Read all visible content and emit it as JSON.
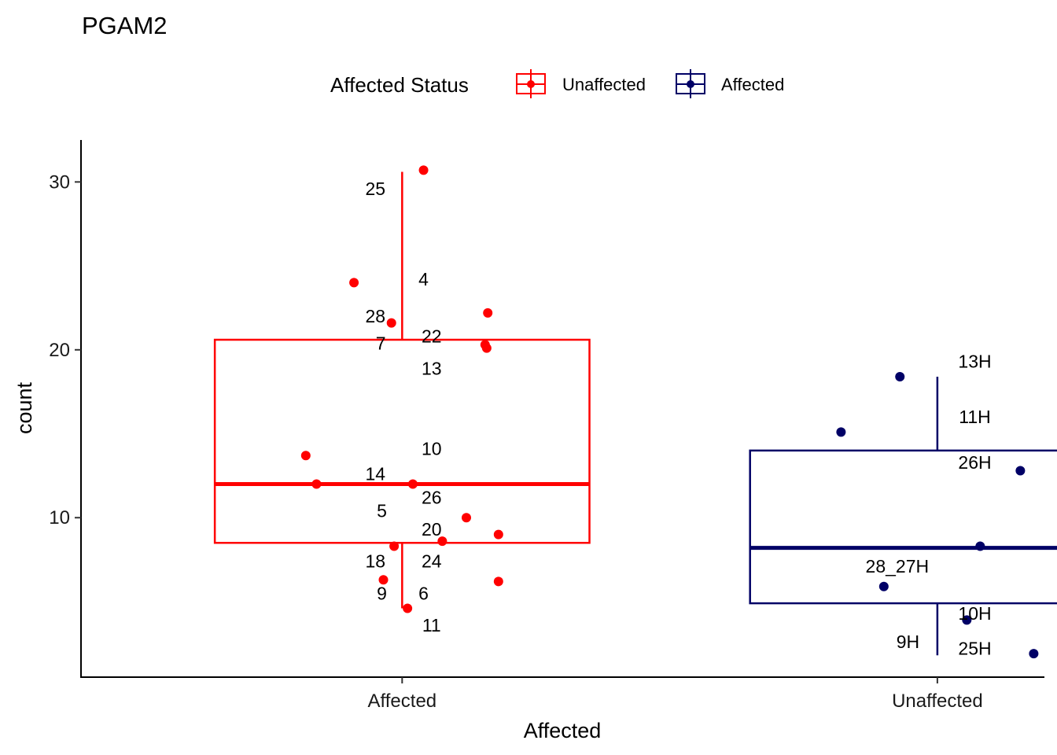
{
  "chart_data": {
    "type": "boxplot",
    "title": "PGAM2",
    "xlabel": "Affected",
    "ylabel": "count",
    "ylim": [
      0.5,
      32.5
    ],
    "y_ticks": [
      10,
      20,
      30
    ],
    "categories": [
      "Affected",
      "Unaffected"
    ],
    "legend": {
      "title": "Affected Status",
      "position": "top",
      "entries": [
        {
          "label": "Unaffected",
          "color": "#ff0000"
        },
        {
          "label": "Affected",
          "color": "#000066"
        }
      ]
    },
    "boxes": [
      {
        "category": "Affected",
        "color": "#ff0000",
        "whisker_low": 4.6,
        "q1": 8.5,
        "median": 12.0,
        "q3": 20.6,
        "whisker_high": 30.6,
        "points": [
          {
            "label": "25",
            "x_offset": 0.04,
            "y": 30.7
          },
          {
            "label": "4",
            "x_offset": -0.09,
            "y": 24.0
          },
          {
            "label": "28",
            "x_offset": 0.16,
            "y": 22.2
          },
          {
            "label": "7",
            "x_offset": -0.02,
            "y": 21.6
          },
          {
            "label": "22",
            "x_offset": 0.155,
            "y": 20.3
          },
          {
            "label": "13",
            "x_offset": 0.158,
            "y": 20.1
          },
          {
            "label": "10",
            "x_offset": -0.18,
            "y": 13.7
          },
          {
            "label": "14",
            "x_offset": -0.16,
            "y": 12.0
          },
          {
            "label": "26",
            "x_offset": 0.02,
            "y": 12.0
          },
          {
            "label": "5",
            "x_offset": 0.12,
            "y": 10.0
          },
          {
            "label": "20",
            "x_offset": 0.18,
            "y": 9.0
          },
          {
            "label": "18",
            "x_offset": -0.015,
            "y": 8.3
          },
          {
            "label": "24",
            "x_offset": 0.075,
            "y": 8.6
          },
          {
            "label": "9",
            "x_offset": -0.035,
            "y": 6.3
          },
          {
            "label": "6",
            "x_offset": 0.18,
            "y": 6.2
          },
          {
            "label": "11",
            "x_offset": 0.01,
            "y": 4.6
          }
        ],
        "labels_text": [
          {
            "text": "25",
            "x_offset": -0.05,
            "y": 29.6
          },
          {
            "text": "4",
            "x_offset": 0.04,
            "y": 24.2
          },
          {
            "text": "28",
            "x_offset": -0.05,
            "y": 22.0
          },
          {
            "text": "7",
            "x_offset": -0.04,
            "y": 20.4
          },
          {
            "text": "22",
            "x_offset": 0.055,
            "y": 20.8
          },
          {
            "text": "13",
            "x_offset": 0.055,
            "y": 18.9
          },
          {
            "text": "10",
            "x_offset": 0.055,
            "y": 14.1
          },
          {
            "text": "14",
            "x_offset": -0.05,
            "y": 12.6
          },
          {
            "text": "26",
            "x_offset": 0.055,
            "y": 11.2
          },
          {
            "text": "5",
            "x_offset": -0.038,
            "y": 10.4
          },
          {
            "text": "20",
            "x_offset": 0.055,
            "y": 9.3
          },
          {
            "text": "18",
            "x_offset": -0.05,
            "y": 7.4
          },
          {
            "text": "24",
            "x_offset": 0.055,
            "y": 7.4
          },
          {
            "text": "9",
            "x_offset": -0.038,
            "y": 5.5
          },
          {
            "text": "6",
            "x_offset": 0.04,
            "y": 5.5
          },
          {
            "text": "11",
            "x_offset": 0.055,
            "y": 3.6
          }
        ]
      },
      {
        "category": "Unaffected",
        "color": "#000066",
        "whisker_low": 1.8,
        "q1": 4.9,
        "median": 8.2,
        "q3": 14.0,
        "whisker_high": 18.4,
        "points": [
          {
            "label": "13H",
            "x_offset": -0.07,
            "y": 18.4
          },
          {
            "label": "11H",
            "x_offset": -0.18,
            "y": 15.1
          },
          {
            "label": "26H",
            "x_offset": 0.155,
            "y": 12.8
          },
          {
            "label": "28_27H",
            "x_offset": 0.08,
            "y": 8.3
          },
          {
            "label": "10H",
            "x_offset": -0.1,
            "y": 5.9
          },
          {
            "label": "9H",
            "x_offset": 0.055,
            "y": 3.9
          },
          {
            "label": "25H",
            "x_offset": 0.18,
            "y": 1.9
          }
        ],
        "labels_text": [
          {
            "text": "13H",
            "x_offset": 0.07,
            "y": 19.3
          },
          {
            "text": "11H",
            "x_offset": 0.07,
            "y": 16.0
          },
          {
            "text": "26H",
            "x_offset": 0.07,
            "y": 13.3
          },
          {
            "text": "28_27H",
            "x_offset": -0.075,
            "y": 7.1
          },
          {
            "text": "10H",
            "x_offset": 0.07,
            "y": 4.3
          },
          {
            "text": "9H",
            "x_offset": -0.055,
            "y": 2.6
          },
          {
            "text": "25H",
            "x_offset": 0.07,
            "y": 2.2
          }
        ]
      }
    ]
  }
}
